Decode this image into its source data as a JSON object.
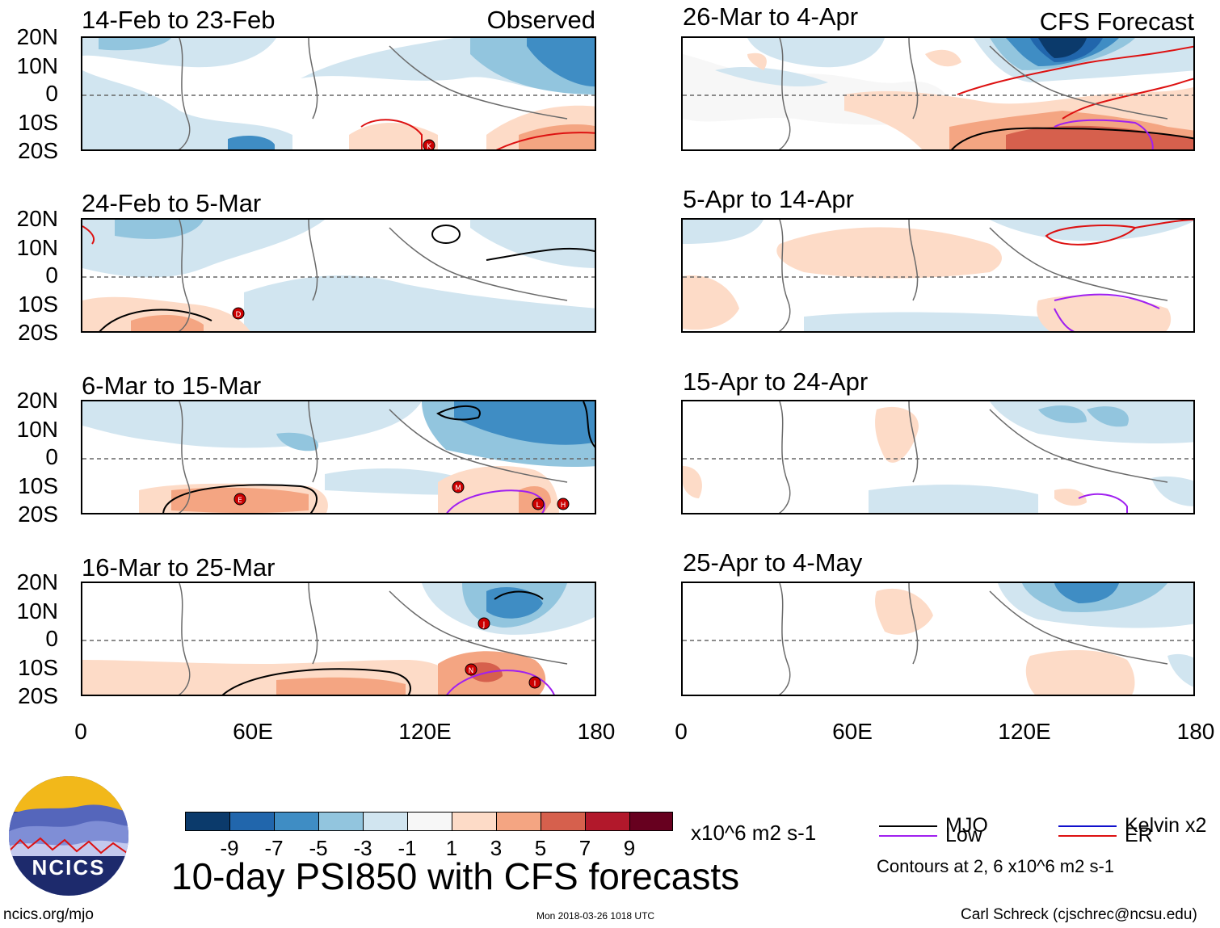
{
  "columns": {
    "observed_label": "Observed",
    "forecast_label": "CFS Forecast"
  },
  "panels_observed": [
    {
      "title": "14-Feb to 23-Feb",
      "storm_markers": [
        "K"
      ]
    },
    {
      "title": "24-Feb to 5-Mar",
      "storm_markers": [
        "D"
      ]
    },
    {
      "title": "6-Mar to 15-Mar",
      "storm_markers": [
        "E",
        "M",
        "L",
        "H"
      ]
    },
    {
      "title": "16-Mar to 25-Mar",
      "storm_markers": [
        "J",
        "N",
        "I"
      ]
    }
  ],
  "panels_forecast": [
    {
      "title": "26-Mar to 4-Apr"
    },
    {
      "title": "5-Apr to 14-Apr"
    },
    {
      "title": "15-Apr to 24-Apr"
    },
    {
      "title": "25-Apr to 4-May"
    }
  ],
  "lat_labels": [
    "20N",
    "10N",
    "0",
    "10S",
    "20S"
  ],
  "lon_labels": [
    "0",
    "60E",
    "120E",
    "180"
  ],
  "colorbar": {
    "ticks": [
      "-9",
      "-7",
      "-5",
      "-3",
      "-1",
      "1",
      "3",
      "5",
      "7",
      "9"
    ],
    "colors": [
      "#0b3a6b",
      "#2166ac",
      "#3f8dc4",
      "#92c5de",
      "#d1e5f0",
      "#f7f7f7",
      "#fddbc7",
      "#f4a582",
      "#d6604d",
      "#b2182b",
      "#67001f"
    ],
    "units": "x10^6 m2 s-1"
  },
  "legend": {
    "mjo": {
      "label": "MJO",
      "color": "#000000"
    },
    "low": {
      "label": "Low",
      "color": "#a020f0"
    },
    "kelvin": {
      "label": "Kelvin x2",
      "color": "#1010cc"
    },
    "er": {
      "label": "ER",
      "color": "#dd1111"
    },
    "contours_note": "Contours at 2, 6 x10^6 m2 s-1"
  },
  "main_title": "10-day PSI850 with CFS forecasts",
  "logo_text": "NCICS",
  "footer": {
    "url": "ncics.org/mjo",
    "timestamp": "Mon 2018-03-26 1018 UTC",
    "credit": "Carl Schreck (cjschrec@ncsu.edu)"
  }
}
